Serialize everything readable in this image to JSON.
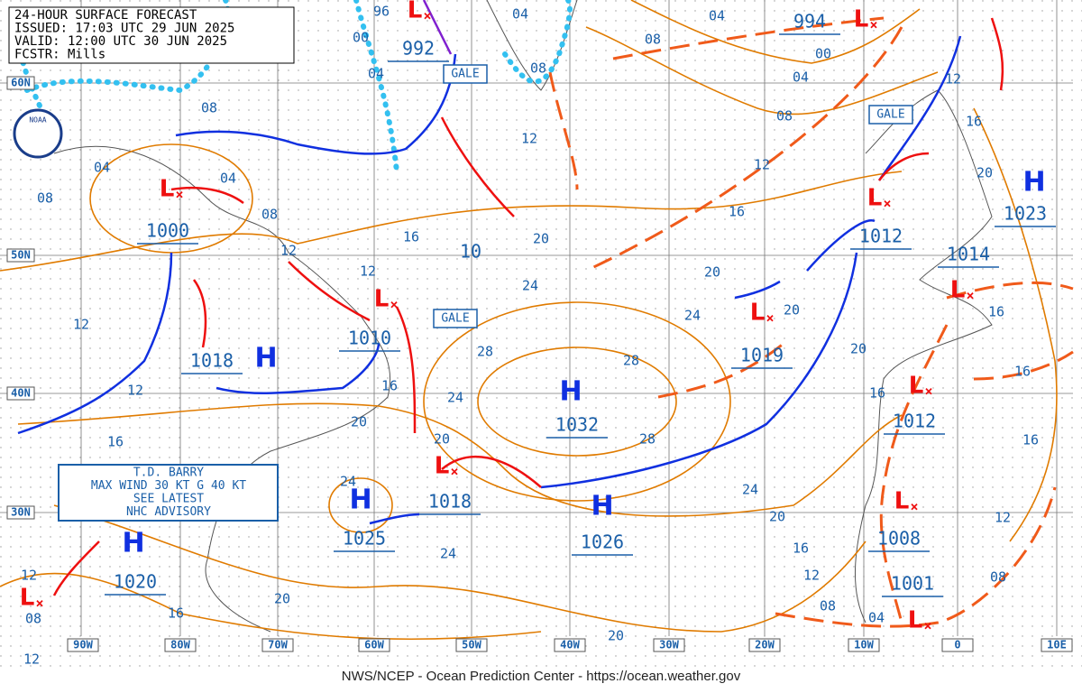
{
  "header": [
    "24-HOUR SURFACE FORECAST",
    "ISSUED: 17:03 UTC 29 JUN 2025",
    "VALID: 12:00 UTC 30 JUN 2025",
    "FCSTR: Mills"
  ],
  "logo": "NOAA",
  "lat_labels": [
    "60N",
    "50N",
    "40N",
    "30N"
  ],
  "lon_labels": [
    "90W",
    "80W",
    "70W",
    "60W",
    "50W",
    "40W",
    "30W",
    "20W",
    "10W",
    "0",
    "10E"
  ],
  "centers": [
    {
      "letter": "H",
      "pressure": "1032"
    },
    {
      "letter": "H",
      "pressure": "1018"
    },
    {
      "letter": "H",
      "pressure": "1025"
    },
    {
      "letter": "H",
      "pressure": "1026"
    },
    {
      "letter": "H",
      "pressure": "1020"
    },
    {
      "letter": "H",
      "pressure": "1023"
    },
    {
      "letter": "L",
      "pressure": "1000"
    },
    {
      "letter": "L",
      "pressure": "1010"
    },
    {
      "letter": "L",
      "pressure": "992"
    },
    {
      "letter": "L",
      "pressure": "994"
    },
    {
      "letter": "L",
      "pressure": "1012"
    },
    {
      "letter": "L",
      "pressure": "1019"
    },
    {
      "letter": "L",
      "pressure": "1018"
    },
    {
      "letter": "L",
      "pressure": "1012"
    },
    {
      "letter": "L",
      "pressure": "1008"
    },
    {
      "letter": "L",
      "pressure": "1001"
    },
    {
      "letter": "L",
      "pressure": "1014"
    },
    {
      "letter": "L"
    }
  ],
  "gale_labels": [
    "GALE",
    "GALE",
    "GALE"
  ],
  "storm_box": [
    "T.D. BARRY",
    "MAX WIND 30 KT G 40 KT",
    "SEE LATEST",
    "NHC ADVISORY"
  ],
  "isobar_labels": [
    "96",
    "00",
    "04",
    "04",
    "08",
    "08",
    "04",
    "00",
    "04",
    "08",
    "12",
    "12",
    "16",
    "20",
    "12",
    "16",
    "20",
    "20",
    "24",
    "24",
    "20",
    "28",
    "28",
    "24",
    "28",
    "20",
    "16",
    "16",
    "16",
    "16",
    "24",
    "20",
    "16",
    "12",
    "08",
    "04",
    "12",
    "08",
    "20",
    "24",
    "20",
    "24",
    "20",
    "16",
    "12",
    "16",
    "12",
    "08",
    "04",
    "08",
    "04",
    "08",
    "12",
    "12",
    "16",
    "20",
    "16",
    "12",
    "08",
    "12",
    "10"
  ],
  "footer": "NWS/NCEP - Ocean Prediction Center - https://ocean.weather.gov"
}
